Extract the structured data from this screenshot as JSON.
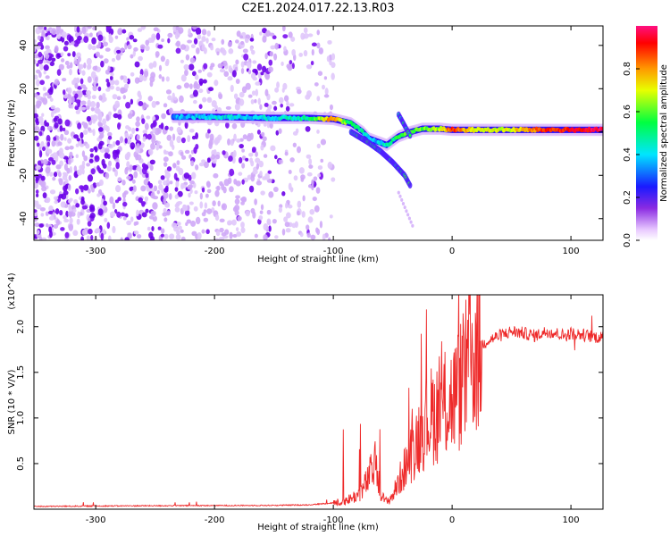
{
  "title": "C2E1.2024.017.22.13.R03",
  "chart_data": [
    {
      "type": "heatmap",
      "xlabel": "Height of straight line (km)",
      "ylabel": "Frequency (Hz)",
      "xlim": [
        -352,
        127
      ],
      "ylim": [
        -50,
        49
      ],
      "x_ticks": [
        -300,
        -200,
        -100,
        0,
        100
      ],
      "y_ticks": [
        -40,
        -20,
        0,
        20,
        40
      ],
      "colorbar": {
        "label": "Normalized spectral amplitude",
        "range": [
          0,
          1
        ],
        "ticks": [
          0.0,
          0.2,
          0.4,
          0.6,
          0.8
        ]
      },
      "noise_region_x": [
        -352,
        -100
      ],
      "main_ridge": {
        "x": [
          -235,
          -200,
          -150,
          -120,
          -100,
          -85,
          -75,
          -70,
          -65,
          -55,
          -45,
          -35,
          -25,
          -10,
          0,
          20,
          50,
          80,
          110,
          127
        ],
        "y": [
          7,
          7,
          6.5,
          6.5,
          6,
          4,
          0,
          -3,
          -4,
          -6,
          -2,
          0,
          1.5,
          1.5,
          1,
          1,
          1,
          1,
          1,
          1
        ],
        "amplitude": [
          0.35,
          0.4,
          0.4,
          0.5,
          0.85,
          0.5,
          0.45,
          0.4,
          0.35,
          0.45,
          0.55,
          0.6,
          0.6,
          0.65,
          0.9,
          0.7,
          0.7,
          0.9,
          0.95,
          0.95
        ]
      },
      "side_branches": [
        {
          "x": [
            -85,
            -70,
            -60,
            -50,
            -40,
            -35
          ],
          "y": [
            0,
            -5,
            -9,
            -14,
            -20,
            -25
          ]
        },
        {
          "x": [
            -45,
            -40,
            -35
          ],
          "y": [
            8,
            3,
            -2
          ]
        }
      ]
    },
    {
      "type": "line",
      "xlabel": "Height of straight line (km)",
      "ylabel": "SNR (10 * V/V)",
      "y_multiplier": "(x10^4)",
      "xlim": [
        -352,
        127
      ],
      "ylim": [
        0,
        23500
      ],
      "x_ticks": [
        -300,
        -200,
        -100,
        0,
        100
      ],
      "y_ticks": [
        5000,
        10000,
        15000,
        20000
      ],
      "y_tick_labels": [
        "0.5",
        "1.0",
        "1.5",
        "2.0"
      ],
      "line_color": "#ee2a2a",
      "series": [
        {
          "x": [
            -352,
            -300,
            -250,
            -200,
            -150,
            -120,
            -100,
            -90,
            -80,
            -75,
            -70,
            -65,
            -62,
            -58,
            -55,
            -50,
            -45,
            -40,
            -35,
            -30,
            -25,
            -20,
            -15,
            -10,
            -5,
            0,
            5,
            10,
            15,
            20,
            25,
            30,
            40,
            50,
            60,
            70,
            80,
            90,
            95,
            100,
            110,
            120,
            127
          ],
          "y": [
            300,
            350,
            380,
            400,
            420,
            480,
            700,
            900,
            1500,
            2200,
            3500,
            5000,
            3000,
            1200,
            800,
            1500,
            3000,
            4500,
            6000,
            7500,
            9000,
            10000,
            10500,
            11000,
            11500,
            12000,
            13000,
            14500,
            16000,
            17000,
            18000,
            18500,
            19000,
            19500,
            19300,
            19000,
            19500,
            19200,
            19000,
            19300,
            19100,
            18900,
            18800
          ]
        }
      ]
    }
  ]
}
